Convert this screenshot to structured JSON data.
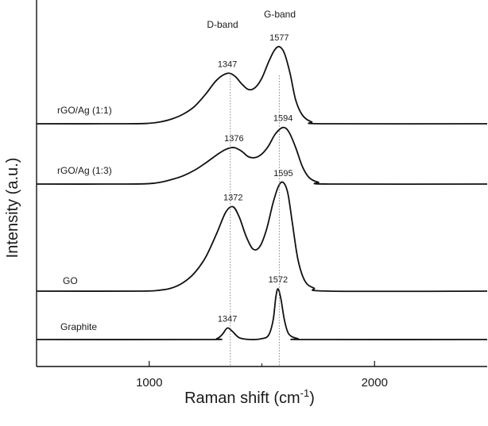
{
  "chart_data": {
    "type": "line",
    "xlabel": "Raman shift (cm",
    "xlabel_sup": "-1",
    "xlabel_tail": ")",
    "ylabel": "Intensity (a.u.)",
    "xlim": [
      500,
      2500
    ],
    "xticks": [
      1000,
      2000
    ],
    "yticks_shown": false,
    "grid": false,
    "band_annotations": [
      {
        "label": "D-band",
        "x": 1360
      },
      {
        "label": "G-band",
        "x": 1577
      }
    ],
    "series": [
      {
        "name": "rGO/Ag (1:1)",
        "baseline": 0.0,
        "points": [
          [
            500,
            0.0
          ],
          [
            900,
            0.0
          ],
          [
            1000,
            0.005
          ],
          [
            1050,
            0.02
          ],
          [
            1100,
            0.05
          ],
          [
            1150,
            0.1
          ],
          [
            1200,
            0.18
          ],
          [
            1250,
            0.31
          ],
          [
            1300,
            0.46
          ],
          [
            1347,
            0.53
          ],
          [
            1380,
            0.5
          ],
          [
            1410,
            0.42
          ],
          [
            1440,
            0.36
          ],
          [
            1470,
            0.38
          ],
          [
            1500,
            0.48
          ],
          [
            1530,
            0.65
          ],
          [
            1555,
            0.77
          ],
          [
            1577,
            0.81
          ],
          [
            1600,
            0.74
          ],
          [
            1625,
            0.53
          ],
          [
            1650,
            0.25
          ],
          [
            1680,
            0.09
          ],
          [
            1720,
            0.02
          ],
          [
            1780,
            0.0
          ],
          [
            2500,
            0.0
          ]
        ],
        "peaks": [
          {
            "x": 1347,
            "label": "1347"
          },
          {
            "x": 1577,
            "label": "1577"
          }
        ]
      },
      {
        "name": "rGO/Ag (1:3)",
        "baseline": 0.0,
        "points": [
          [
            500,
            0.0
          ],
          [
            900,
            0.0
          ],
          [
            1000,
            0.005
          ],
          [
            1050,
            0.02
          ],
          [
            1100,
            0.05
          ],
          [
            1150,
            0.09
          ],
          [
            1200,
            0.15
          ],
          [
            1250,
            0.23
          ],
          [
            1300,
            0.32
          ],
          [
            1340,
            0.38
          ],
          [
            1376,
            0.4
          ],
          [
            1410,
            0.36
          ],
          [
            1440,
            0.3
          ],
          [
            1470,
            0.29
          ],
          [
            1500,
            0.33
          ],
          [
            1530,
            0.42
          ],
          [
            1560,
            0.55
          ],
          [
            1594,
            0.62
          ],
          [
            1620,
            0.57
          ],
          [
            1650,
            0.4
          ],
          [
            1680,
            0.19
          ],
          [
            1710,
            0.07
          ],
          [
            1750,
            0.02
          ],
          [
            1800,
            0.0
          ],
          [
            2500,
            0.0
          ]
        ],
        "peaks": [
          {
            "x": 1376,
            "label": "1376"
          },
          {
            "x": 1594,
            "label": "1594"
          }
        ]
      },
      {
        "name": "GO",
        "baseline": 0.0,
        "points": [
          [
            500,
            0.0
          ],
          [
            950,
            0.0
          ],
          [
            1050,
            0.01
          ],
          [
            1100,
            0.03
          ],
          [
            1150,
            0.08
          ],
          [
            1200,
            0.17
          ],
          [
            1250,
            0.32
          ],
          [
            1300,
            0.55
          ],
          [
            1340,
            0.75
          ],
          [
            1372,
            0.8
          ],
          [
            1400,
            0.7
          ],
          [
            1430,
            0.52
          ],
          [
            1460,
            0.4
          ],
          [
            1490,
            0.42
          ],
          [
            1520,
            0.58
          ],
          [
            1550,
            0.84
          ],
          [
            1575,
            1.0
          ],
          [
            1595,
            1.03
          ],
          [
            1615,
            0.93
          ],
          [
            1635,
            0.65
          ],
          [
            1660,
            0.3
          ],
          [
            1690,
            0.1
          ],
          [
            1730,
            0.03
          ],
          [
            1800,
            0.0
          ],
          [
            2500,
            0.0
          ]
        ],
        "peaks": [
          {
            "x": 1372,
            "label": "1372"
          },
          {
            "x": 1595,
            "label": "1595"
          }
        ]
      },
      {
        "name": "Graphite",
        "baseline": 0.0,
        "points": [
          [
            500,
            0.0
          ],
          [
            1250,
            0.0
          ],
          [
            1300,
            0.01
          ],
          [
            1325,
            0.06
          ],
          [
            1347,
            0.13
          ],
          [
            1370,
            0.09
          ],
          [
            1400,
            0.02
          ],
          [
            1450,
            0.0
          ],
          [
            1500,
            0.01
          ],
          [
            1530,
            0.05
          ],
          [
            1550,
            0.22
          ],
          [
            1562,
            0.48
          ],
          [
            1572,
            0.57
          ],
          [
            1585,
            0.45
          ],
          [
            1600,
            0.22
          ],
          [
            1620,
            0.06
          ],
          [
            1660,
            0.01
          ],
          [
            1700,
            0.0
          ],
          [
            2500,
            0.0
          ]
        ],
        "peaks": [
          {
            "x": 1347,
            "label": "1347"
          },
          {
            "x": 1572,
            "label": "1572"
          }
        ]
      }
    ]
  }
}
